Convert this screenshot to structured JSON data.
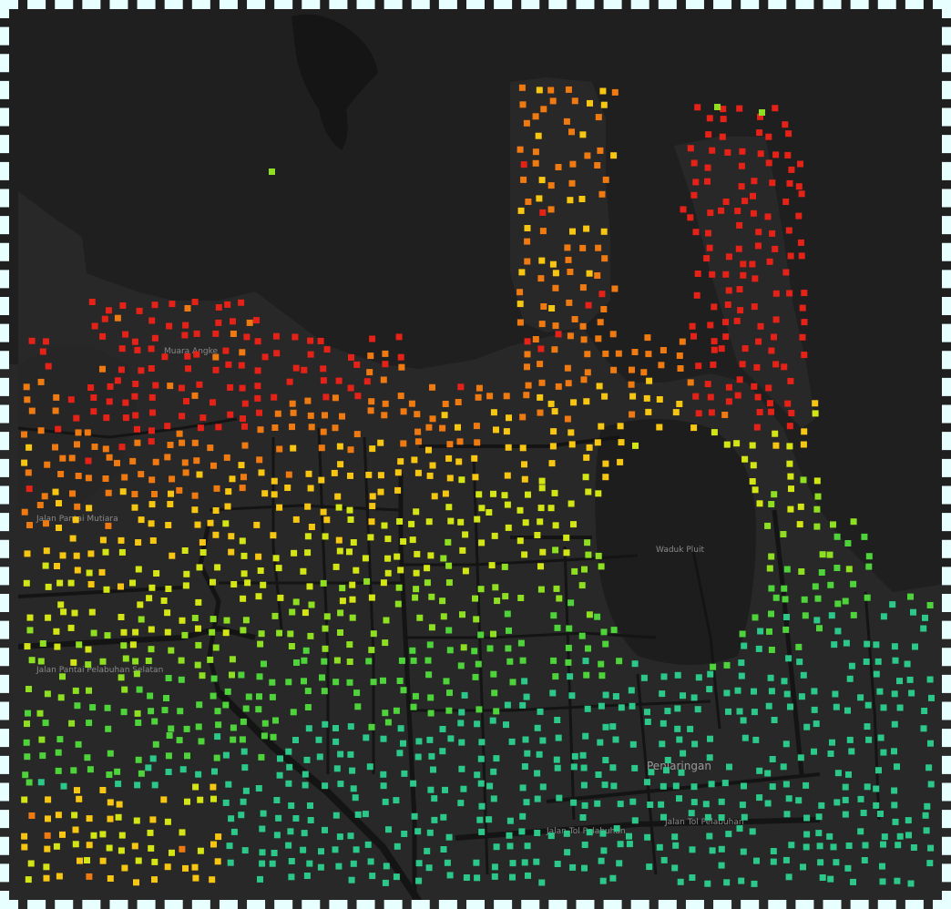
{
  "map": {
    "style": "dark",
    "colors": {
      "land": "#2a2a2a",
      "water": "#1b1b1b",
      "road": "#111111",
      "border": "#e8ffff"
    },
    "color_scale": [
      "#e52218",
      "#ef7a12",
      "#f7c612",
      "#d3e514",
      "#8ede22",
      "#4fd33a",
      "#2cc88a"
    ],
    "labels": [
      {
        "id": "road-pantai",
        "text": "Jalan Pantai Mutiara"
      },
      {
        "id": "road-pelabuhan",
        "text": "Jalan Pantai Pelabuhan Selatan"
      },
      {
        "id": "district",
        "text": "Penjaringan"
      },
      {
        "id": "toll",
        "text": "Jalan Tol Pelabuhan"
      },
      {
        "id": "toll2",
        "text": "Jalan Tol Pelabuhan"
      },
      {
        "id": "area",
        "text": "Muara Angke"
      },
      {
        "id": "lake",
        "text": "Waduk Pluit"
      }
    ]
  }
}
